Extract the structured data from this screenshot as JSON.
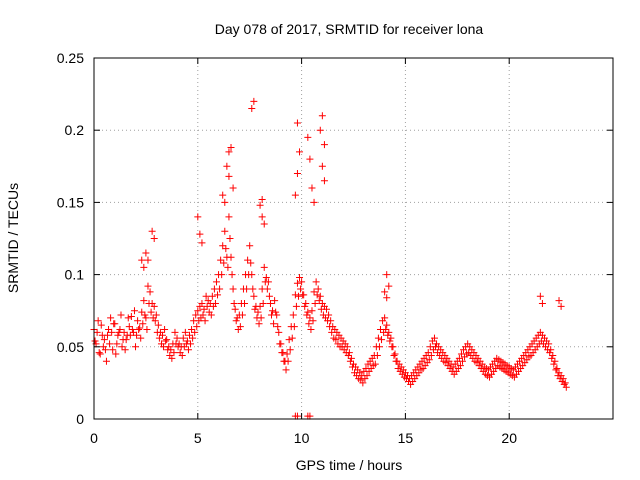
{
  "chart_data": {
    "type": "scatter",
    "title": "Day 078 of 2017, SRMTID for receiver lona",
    "xlabel": "GPS time / hours",
    "ylabel": "SRMTID / TECUs",
    "xlim": [
      0,
      25
    ],
    "ylim": [
      0,
      0.25
    ],
    "x_ticks": [
      0,
      5,
      10,
      15,
      20
    ],
    "x_tick_labels": [
      "0",
      "5",
      "10",
      "15",
      "20"
    ],
    "y_ticks": [
      0,
      0.05,
      0.1,
      0.15,
      0.2,
      0.25
    ],
    "y_tick_labels": [
      "0",
      "0.05",
      "0.1",
      "0.15",
      "0.2",
      "0.25"
    ],
    "grid": true,
    "marker": "+",
    "series": [
      {
        "name": "SRMTID",
        "color": "#ff0000",
        "x": [
          0.0,
          0.1,
          0.2,
          0.3,
          0.4,
          0.5,
          0.6,
          0.7,
          0.8,
          0.9,
          1.0,
          1.1,
          1.2,
          1.3,
          1.4,
          1.5,
          1.6,
          1.7,
          1.8,
          1.9,
          2.0,
          2.1,
          2.2,
          2.3,
          2.4,
          2.5,
          2.6,
          2.7,
          2.8,
          2.9,
          3.0,
          3.1,
          3.2,
          3.3,
          3.4,
          3.5,
          3.6,
          3.7,
          3.8,
          3.9,
          4.0,
          4.1,
          4.2,
          4.3,
          4.4,
          4.5,
          4.6,
          4.7,
          4.8,
          4.9,
          5.0,
          5.1,
          5.2,
          5.3,
          5.4,
          5.5,
          5.6,
          5.7,
          5.8,
          5.9,
          6.0,
          6.1,
          6.2,
          6.3,
          6.4,
          6.5,
          6.6,
          6.7,
          6.8,
          6.9,
          7.0,
          7.1,
          7.2,
          7.3,
          7.4,
          7.5,
          7.6,
          7.7,
          7.8,
          7.9,
          8.0,
          8.1,
          8.2,
          8.3,
          8.4,
          8.5,
          8.6,
          8.7,
          8.8,
          8.9,
          9.0,
          9.1,
          9.2,
          9.3,
          9.4,
          9.5,
          9.6,
          9.7,
          9.8,
          9.9,
          10.0,
          10.1,
          10.2,
          10.3,
          10.4,
          10.5,
          10.6,
          10.7,
          10.8,
          10.9,
          11.0,
          11.1,
          11.2,
          11.3,
          11.4,
          11.5,
          11.6,
          11.7,
          11.8,
          11.9,
          12.0,
          12.1,
          12.2,
          12.3,
          12.4,
          12.5,
          12.6,
          12.7,
          12.8,
          12.9,
          13.0,
          13.1,
          13.2,
          13.3,
          13.4,
          13.5,
          13.6,
          13.7,
          13.8,
          13.9,
          14.0,
          14.1,
          14.2,
          14.3,
          14.4,
          14.5,
          14.6,
          14.7,
          14.8,
          14.9,
          15.0,
          15.1,
          15.2,
          15.3,
          15.4,
          15.5,
          15.6,
          15.7,
          15.8,
          15.9,
          16.0,
          16.1,
          16.2,
          16.3,
          16.4,
          16.5,
          16.6,
          16.7,
          16.8,
          16.9,
          17.0,
          17.1,
          17.2,
          17.3,
          17.4,
          17.5,
          17.6,
          17.7,
          17.8,
          17.9,
          18.0,
          18.1,
          18.2,
          18.3,
          18.4,
          18.5,
          18.6,
          18.7,
          18.8,
          18.9,
          19.0,
          19.1,
          19.2,
          19.3,
          19.4,
          19.5,
          19.6,
          19.7,
          19.8,
          19.9,
          20.0,
          20.1,
          20.2,
          20.3,
          20.4,
          20.5,
          20.6,
          20.7,
          20.8,
          20.9,
          21.0,
          21.1,
          21.2,
          21.3,
          21.4,
          21.5,
          21.6,
          21.7,
          21.8,
          21.9,
          22.0,
          22.1,
          22.2,
          22.3,
          22.4,
          22.5,
          22.6,
          22.7,
          0.05,
          0.15,
          0.25,
          0.35,
          0.45,
          0.55,
          0.65,
          0.75,
          0.85,
          0.95,
          1.05,
          1.15,
          1.25,
          1.35,
          1.45,
          1.55,
          1.65,
          1.75,
          1.85,
          1.95,
          2.05,
          2.15,
          2.25,
          2.35,
          2.45,
          2.55,
          2.65,
          2.75,
          2.85,
          2.95,
          3.05,
          3.15,
          3.25,
          3.35,
          3.45,
          3.55,
          3.65,
          3.75,
          3.85,
          3.95,
          4.05,
          4.15,
          4.25,
          4.35,
          4.45,
          4.55,
          4.65,
          4.75,
          4.85,
          4.95,
          5.05,
          5.15,
          5.25,
          5.35,
          5.45,
          5.55,
          5.65,
          5.75,
          5.85,
          5.95,
          6.05,
          6.15,
          6.25,
          6.35,
          6.45,
          6.55,
          6.65,
          6.75,
          6.85,
          6.95,
          7.05,
          7.15,
          7.25,
          7.35,
          7.45,
          7.55,
          7.65,
          7.75,
          7.85,
          7.95,
          8.05,
          8.15,
          8.25,
          8.35,
          8.45,
          8.55,
          8.65,
          8.75,
          8.85,
          8.95,
          9.05,
          9.15,
          9.25,
          9.35,
          9.45,
          9.55,
          9.65,
          9.75,
          9.85,
          9.95,
          10.05,
          10.15,
          10.25,
          10.35,
          10.45,
          10.55,
          10.65,
          10.75,
          10.85,
          10.95,
          11.05,
          11.15,
          11.25,
          11.35,
          11.45,
          11.55,
          11.65,
          11.75,
          11.85,
          11.95,
          12.05,
          12.15,
          12.25,
          12.35,
          12.45,
          12.55,
          12.65,
          12.75,
          12.85,
          12.95,
          13.05,
          13.15,
          13.25,
          13.35,
          13.45,
          13.55,
          13.65,
          13.75,
          13.85,
          13.95,
          14.05,
          14.15,
          14.25,
          14.35,
          14.45,
          14.55,
          14.65,
          14.75,
          14.85,
          14.95,
          15.05,
          15.15,
          15.25,
          15.35,
          15.45,
          15.55,
          15.65,
          15.75,
          15.85,
          15.95,
          16.05,
          16.15,
          16.25,
          16.35,
          16.45,
          16.55,
          16.65,
          16.75,
          16.85,
          16.95,
          17.05,
          17.15,
          17.25,
          17.35,
          17.45,
          17.55,
          17.65,
          17.75,
          17.85,
          17.95,
          18.05,
          18.15,
          18.25,
          18.35,
          18.45,
          18.55,
          18.65,
          18.75,
          18.85,
          18.95,
          19.05,
          19.15,
          19.25,
          19.35,
          19.45,
          19.55,
          19.65,
          19.75,
          19.85,
          19.95,
          20.05,
          20.15,
          20.25,
          20.35,
          20.45,
          20.55,
          20.65,
          20.75,
          20.85,
          20.95,
          21.05,
          21.15,
          21.25,
          21.35,
          21.45,
          21.55,
          21.65,
          21.75,
          21.85,
          21.95,
          22.05,
          22.15,
          22.25,
          22.35,
          22.45,
          22.55,
          22.65,
          22.75,
          6.5,
          6.6,
          6.7,
          7.6,
          7.7,
          8.0,
          8.1,
          9.8,
          9.9,
          10.9,
          11.0,
          11.1,
          2.8,
          2.9,
          8.1,
          8.2,
          5.0,
          5.1,
          5.2,
          6.4,
          6.5,
          6.2,
          6.3,
          9.7,
          9.8,
          10.3,
          10.4,
          10.5,
          10.6,
          11.0,
          11.1,
          14.1,
          14.2,
          14.0,
          14.1,
          21.5,
          21.6,
          22.4,
          22.5,
          2.3,
          2.4,
          2.5,
          2.6,
          9.7,
          9.8,
          10.3,
          10.4
        ],
        "y": [
          0.062,
          0.052,
          0.068,
          0.045,
          0.058,
          0.055,
          0.04,
          0.062,
          0.07,
          0.048,
          0.066,
          0.052,
          0.06,
          0.072,
          0.055,
          0.048,
          0.058,
          0.064,
          0.071,
          0.06,
          0.05,
          0.068,
          0.063,
          0.074,
          0.082,
          0.07,
          0.092,
          0.088,
          0.08,
          0.078,
          0.072,
          0.065,
          0.06,
          0.058,
          0.062,
          0.055,
          0.05,
          0.048,
          0.052,
          0.06,
          0.056,
          0.052,
          0.05,
          0.056,
          0.06,
          0.054,
          0.058,
          0.062,
          0.068,
          0.072,
          0.075,
          0.078,
          0.08,
          0.076,
          0.085,
          0.082,
          0.08,
          0.085,
          0.09,
          0.095,
          0.1,
          0.11,
          0.12,
          0.13,
          0.112,
          0.14,
          0.112,
          0.09,
          0.076,
          0.07,
          0.072,
          0.08,
          0.09,
          0.1,
          0.11,
          0.12,
          0.1,
          0.085,
          0.078,
          0.074,
          0.078,
          0.09,
          0.105,
          0.098,
          0.095,
          0.08,
          0.075,
          0.082,
          0.072,
          0.06,
          0.052,
          0.046,
          0.04,
          0.045,
          0.055,
          0.064,
          0.072,
          0.086,
          0.094,
          0.098,
          0.095,
          0.086,
          0.08,
          0.074,
          0.07,
          0.075,
          0.088,
          0.095,
          0.09,
          0.085,
          0.08,
          0.078,
          0.076,
          0.072,
          0.068,
          0.064,
          0.062,
          0.06,
          0.058,
          0.056,
          0.054,
          0.052,
          0.05,
          0.046,
          0.042,
          0.038,
          0.036,
          0.034,
          0.032,
          0.03,
          0.033,
          0.035,
          0.038,
          0.04,
          0.042,
          0.044,
          0.05,
          0.056,
          0.062,
          0.068,
          0.07,
          0.065,
          0.06,
          0.056,
          0.05,
          0.045,
          0.04,
          0.038,
          0.036,
          0.034,
          0.032,
          0.03,
          0.028,
          0.03,
          0.032,
          0.034,
          0.036,
          0.038,
          0.04,
          0.042,
          0.044,
          0.046,
          0.05,
          0.054,
          0.056,
          0.052,
          0.05,
          0.048,
          0.046,
          0.044,
          0.042,
          0.04,
          0.038,
          0.036,
          0.038,
          0.04,
          0.042,
          0.045,
          0.048,
          0.05,
          0.052,
          0.05,
          0.048,
          0.046,
          0.044,
          0.042,
          0.04,
          0.038,
          0.036,
          0.035,
          0.034,
          0.036,
          0.038,
          0.04,
          0.042,
          0.041,
          0.04,
          0.039,
          0.038,
          0.037,
          0.036,
          0.035,
          0.034,
          0.036,
          0.038,
          0.04,
          0.042,
          0.044,
          0.046,
          0.048,
          0.05,
          0.052,
          0.054,
          0.056,
          0.058,
          0.06,
          0.058,
          0.056,
          0.054,
          0.052,
          0.048,
          0.044,
          0.04,
          0.035,
          0.032,
          0.03,
          0.028,
          0.025,
          0.054,
          0.06,
          0.046,
          0.065,
          0.05,
          0.048,
          0.058,
          0.052,
          0.06,
          0.066,
          0.045,
          0.058,
          0.062,
          0.05,
          0.06,
          0.055,
          0.07,
          0.058,
          0.062,
          0.075,
          0.058,
          0.062,
          0.056,
          0.066,
          0.072,
          0.062,
          0.08,
          0.074,
          0.07,
          0.068,
          0.06,
          0.056,
          0.052,
          0.05,
          0.054,
          0.048,
          0.044,
          0.042,
          0.046,
          0.052,
          0.05,
          0.046,
          0.044,
          0.05,
          0.052,
          0.048,
          0.052,
          0.056,
          0.06,
          0.064,
          0.068,
          0.07,
          0.072,
          0.068,
          0.078,
          0.074,
          0.072,
          0.078,
          0.08,
          0.086,
          0.09,
          0.1,
          0.108,
          0.118,
          0.105,
          0.125,
          0.1,
          0.08,
          0.068,
          0.062,
          0.064,
          0.072,
          0.08,
          0.09,
          0.1,
          0.108,
          0.09,
          0.076,
          0.07,
          0.066,
          0.07,
          0.08,
          0.095,
          0.09,
          0.085,
          0.072,
          0.066,
          0.074,
          0.064,
          0.052,
          0.046,
          0.04,
          0.034,
          0.04,
          0.048,
          0.056,
          0.064,
          0.078,
          0.085,
          0.09,
          0.086,
          0.078,
          0.072,
          0.066,
          0.062,
          0.068,
          0.08,
          0.086,
          0.082,
          0.076,
          0.072,
          0.07,
          0.068,
          0.064,
          0.06,
          0.056,
          0.055,
          0.052,
          0.05,
          0.05,
          0.048,
          0.046,
          0.044,
          0.04,
          0.036,
          0.032,
          0.03,
          0.028,
          0.027,
          0.025,
          0.028,
          0.03,
          0.033,
          0.035,
          0.037,
          0.038,
          0.044,
          0.05,
          0.055,
          0.06,
          0.062,
          0.058,
          0.054,
          0.05,
          0.044,
          0.04,
          0.035,
          0.033,
          0.031,
          0.029,
          0.028,
          0.026,
          0.024,
          0.026,
          0.028,
          0.03,
          0.032,
          0.034,
          0.035,
          0.037,
          0.039,
          0.041,
          0.044,
          0.048,
          0.05,
          0.046,
          0.044,
          0.042,
          0.04,
          0.039,
          0.037,
          0.035,
          0.033,
          0.031,
          0.033,
          0.035,
          0.037,
          0.04,
          0.043,
          0.045,
          0.046,
          0.044,
          0.042,
          0.04,
          0.039,
          0.037,
          0.035,
          0.033,
          0.031,
          0.03,
          0.029,
          0.031,
          0.033,
          0.035,
          0.037,
          0.036,
          0.035,
          0.034,
          0.033,
          0.032,
          0.031,
          0.03,
          0.029,
          0.031,
          0.033,
          0.035,
          0.037,
          0.039,
          0.041,
          0.043,
          0.044,
          0.046,
          0.048,
          0.05,
          0.052,
          0.054,
          0.052,
          0.05,
          0.048,
          0.046,
          0.042,
          0.038,
          0.034,
          0.03,
          0.028,
          0.026,
          0.024,
          0.022,
          0.185,
          0.188,
          0.16,
          0.215,
          0.22,
          0.148,
          0.152,
          0.205,
          0.185,
          0.2,
          0.21,
          0.19,
          0.13,
          0.125,
          0.14,
          0.135,
          0.14,
          0.128,
          0.122,
          0.175,
          0.168,
          0.155,
          0.15,
          0.155,
          0.17,
          0.195,
          0.18,
          0.16,
          0.15,
          0.175,
          0.165,
          0.1,
          0.092,
          0.088,
          0.084,
          0.085,
          0.08,
          0.082,
          0.078,
          0.11,
          0.105,
          0.115,
          0.11,
          0.002,
          0.002,
          0.002,
          0.002
        ]
      }
    ]
  }
}
